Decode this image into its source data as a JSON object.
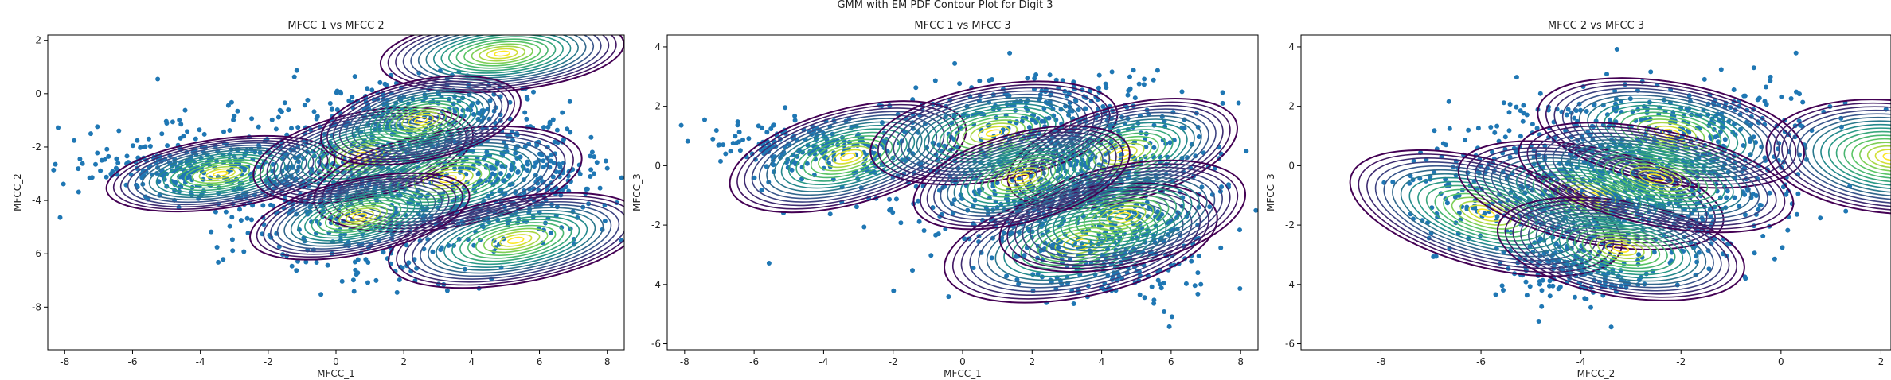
{
  "figure": {
    "suptitle": "GMM with EM PDF Contour Plot for Digit 3"
  },
  "palette": {
    "scatter": "#1f77b4",
    "contour_low": "#440154",
    "contour_mid1": "#3b528b",
    "contour_mid2": "#21918c",
    "contour_mid3": "#5ec962",
    "contour_high": "#fde725",
    "axis": "#000000"
  },
  "chart_data": [
    {
      "type": "scatter",
      "title": "MFCC 1 vs MFCC 2",
      "xlabel": "MFCC_1",
      "ylabel": "MFCC_2",
      "xlim": [
        -8.5,
        8.5
      ],
      "ylim": [
        -9.6,
        2.2
      ],
      "xticks": [
        -8,
        -6,
        -4,
        -2,
        0,
        2,
        4,
        6,
        8
      ],
      "yticks": [
        -8,
        -6,
        -4,
        -2,
        0,
        2
      ],
      "components": [
        {
          "mean": [
            -3.4,
            -3.0
          ],
          "rx": 3.4,
          "ry": 1.3,
          "angle": -8
        },
        {
          "mean": [
            0.8,
            -2.3
          ],
          "rx": 3.3,
          "ry": 1.6,
          "angle": -12
        },
        {
          "mean": [
            3.3,
            -3.2
          ],
          "rx": 4.0,
          "ry": 1.8,
          "angle": -10
        },
        {
          "mean": [
            5.3,
            -5.5
          ],
          "rx": 3.8,
          "ry": 1.6,
          "angle": -10
        },
        {
          "mean": [
            4.9,
            1.5
          ],
          "rx": 3.6,
          "ry": 1.4,
          "angle": -5
        },
        {
          "mean": [
            0.7,
            -4.6
          ],
          "rx": 3.3,
          "ry": 1.4,
          "angle": -12
        },
        {
          "mean": [
            2.5,
            -1.0
          ],
          "rx": 3.0,
          "ry": 1.5,
          "angle": -12
        }
      ],
      "point_clouds": [
        {
          "mean": [
            0.5,
            -3.0
          ],
          "sx": 3.0,
          "sy": 1.3,
          "n": 650
        },
        {
          "mean": [
            5.5,
            -3.3
          ],
          "sx": 1.3,
          "sy": 1.1,
          "n": 220
        },
        {
          "mean": [
            -4.5,
            -2.7
          ],
          "sx": 1.6,
          "sy": 0.5,
          "n": 180
        },
        {
          "mean": [
            2.5,
            -0.5
          ],
          "sx": 1.8,
          "sy": 0.6,
          "n": 160
        },
        {
          "mean": [
            1.5,
            -5.8
          ],
          "sx": 2.0,
          "sy": 0.9,
          "n": 90
        }
      ]
    },
    {
      "type": "scatter",
      "title": "MFCC 1 vs MFCC 3",
      "xlabel": "MFCC_1",
      "ylabel": "MFCC_3",
      "xlim": [
        -8.5,
        8.5
      ],
      "ylim": [
        -6.2,
        4.4
      ],
      "xticks": [
        -8,
        -6,
        -4,
        -2,
        0,
        2,
        4,
        6,
        8
      ],
      "yticks": [
        -6,
        -4,
        -2,
        0,
        2,
        4
      ],
      "components": [
        {
          "mean": [
            -3.3,
            0.3
          ],
          "rx": 3.5,
          "ry": 1.6,
          "angle": -15
        },
        {
          "mean": [
            0.9,
            1.1
          ],
          "rx": 3.6,
          "ry": 1.6,
          "angle": -10
        },
        {
          "mean": [
            4.6,
            0.4
          ],
          "rx": 3.4,
          "ry": 1.6,
          "angle": -15
        },
        {
          "mean": [
            3.4,
            -2.6
          ],
          "rx": 4.0,
          "ry": 1.8,
          "angle": -12
        },
        {
          "mean": [
            4.6,
            -1.7
          ],
          "rx": 3.6,
          "ry": 1.7,
          "angle": -12
        },
        {
          "mean": [
            1.7,
            -0.4
          ],
          "rx": 3.2,
          "ry": 1.5,
          "angle": -15
        }
      ],
      "point_clouds": [
        {
          "mean": [
            2.5,
            -0.3
          ],
          "sx": 2.5,
          "sy": 1.3,
          "n": 700
        },
        {
          "mean": [
            -4.5,
            0.6
          ],
          "sx": 1.5,
          "sy": 0.5,
          "n": 200
        },
        {
          "mean": [
            4.5,
            -3.0
          ],
          "sx": 1.5,
          "sy": 0.9,
          "n": 220
        },
        {
          "mean": [
            2.5,
            2.1
          ],
          "sx": 1.8,
          "sy": 0.5,
          "n": 120
        }
      ]
    },
    {
      "type": "scatter",
      "title": "MFCC 2 vs MFCC 3",
      "xlabel": "MFCC_2",
      "ylabel": "MFCC_3",
      "xlim": [
        -9.6,
        2.2
      ],
      "ylim": [
        -6.2,
        4.4
      ],
      "xticks": [
        -8,
        -6,
        -4,
        -2,
        0,
        2
      ],
      "yticks": [
        -6,
        -4,
        -2,
        0,
        2,
        4
      ],
      "components": [
        {
          "mean": [
            -5.9,
            -1.6
          ],
          "rx": 2.8,
          "ry": 1.8,
          "angle": 15
        },
        {
          "mean": [
            -3.8,
            -1.0
          ],
          "rx": 2.7,
          "ry": 1.6,
          "angle": 12
        },
        {
          "mean": [
            -2.2,
            1.1
          ],
          "rx": 2.7,
          "ry": 1.7,
          "angle": 10
        },
        {
          "mean": [
            -3.2,
            -2.8
          ],
          "rx": 2.5,
          "ry": 1.6,
          "angle": 10
        },
        {
          "mean": [
            2.2,
            0.3
          ],
          "rx": 2.5,
          "ry": 1.9,
          "angle": 5
        },
        {
          "mean": [
            -2.5,
            -0.4
          ],
          "rx": 2.8,
          "ry": 1.6,
          "angle": 12
        }
      ],
      "point_clouds": [
        {
          "mean": [
            -3.2,
            -0.6
          ],
          "sx": 1.6,
          "sy": 1.4,
          "n": 750
        },
        {
          "mean": [
            -4.0,
            -3.5
          ],
          "sx": 0.8,
          "sy": 0.6,
          "n": 150
        },
        {
          "mean": [
            -1.5,
            1.5
          ],
          "sx": 1.3,
          "sy": 0.7,
          "n": 160
        },
        {
          "mean": [
            -6.5,
            -0.8
          ],
          "sx": 0.8,
          "sy": 0.9,
          "n": 60
        }
      ]
    }
  ]
}
